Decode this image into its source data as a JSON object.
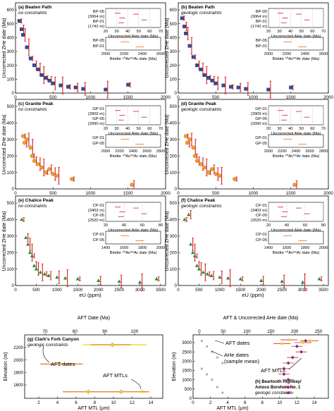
{
  "panels": {
    "a": {
      "letter": "(a) Beaten Path",
      "sub": "no constraints"
    },
    "b": {
      "letter": "(b) Beaten Path",
      "sub": "geologic constraints"
    },
    "c": {
      "letter": "(c) Granite Peak",
      "sub": "no constraints"
    },
    "d": {
      "letter": "(d) Granite Peak",
      "sub": "geologic constraints"
    },
    "e": {
      "letter": "(e) Chalice Peak",
      "sub": "no constraints"
    },
    "f": {
      "letter": "(f) Chalice Peak",
      "sub": "geologic constraints"
    },
    "g": {
      "letter": "(g) Clark's Fork Canyon",
      "sub": "geologic constraints"
    },
    "h": {
      "letter": "(h) Beartooth Highway/",
      "sub": "Amoco Borehole No. 1",
      "sub2": "geologic constraints"
    }
  },
  "axes": {
    "zhe_ylabel": "Uncorrected ZHe date (Ma)",
    "eu_xlabel": "eU (ppm)",
    "elev_ylabel": "Elevation (m)",
    "aft_date": "AFT Date (Ma)",
    "aft_ahe": "AFT & Uncorrected AHe date (Ma)",
    "aft_mtl": "AFT MTL (μm)",
    "ahe_inset": "Uncorrected AHe date (Ma)",
    "biotite": "Biotite ⁴⁰Ar/³⁹Ar date (Ma)",
    "y_ticks_ab": [
      "0",
      "100",
      "200",
      "300",
      "400",
      "500",
      "600"
    ],
    "y_ticks_cd": [
      "0",
      "100",
      "200",
      "300",
      "400",
      "500"
    ],
    "y_ticks_ef": [
      "0",
      "100",
      "200",
      "300",
      "400",
      "500"
    ],
    "x_ticks_2000": [
      "0",
      "500",
      "1000",
      "1500",
      "2000"
    ],
    "x_ticks_3500": [
      "0",
      "500",
      "1000",
      "1500",
      "2000",
      "2500",
      "3000",
      "3500"
    ],
    "inset_ab_top": [
      "20",
      "30",
      "40",
      "50",
      "60",
      "70"
    ],
    "inset_ab_bot": [
      "2000",
      "2200",
      "2400",
      "2600"
    ],
    "inset_cd_top": [
      "20",
      "30",
      "40",
      "50",
      "60",
      "70"
    ],
    "inset_cd_bot": [
      "2000",
      "2200",
      "2400",
      "2600",
      "2800"
    ],
    "inset_ef_top": [
      "20",
      "40",
      "60",
      "80"
    ],
    "inset_ef_bot": [
      "1400",
      "1600",
      "1800",
      "2000"
    ],
    "g_top": [
      "70",
      "80",
      "90",
      "100"
    ],
    "g_bot": [
      "2",
      "4",
      "6",
      "8",
      "10",
      "12",
      "14"
    ],
    "g_y": [
      "1600",
      "1800",
      "2000",
      "2200"
    ],
    "h_top": [
      "0",
      "50",
      "100",
      "150",
      "200",
      "250"
    ],
    "h_bot": [
      "0",
      "2",
      "4",
      "6",
      "8",
      "10",
      "12",
      "14"
    ],
    "h_y": [
      "0",
      "500",
      "1000",
      "1500",
      "2000",
      "2500",
      "3000"
    ]
  },
  "insets": {
    "bp": {
      "s1": "BP-05",
      "s1e": "(3064 m)",
      "s2": "BP-01",
      "s2e": "(1742 m)"
    },
    "gp": {
      "s1": "GP-01",
      "s1e": "(3909 m)",
      "s2": "GP-05",
      "s2e": "(2090 m)"
    },
    "cp": {
      "s1": "CP-01",
      "s1e": "(3403 m)",
      "s2": "CP-05",
      "s2e": "(2520 m)"
    }
  },
  "annotations": {
    "aft_dates": "AFT dates",
    "aft_mtls": "AFT MTLs",
    "ahe_dates": "AHe dates",
    "ahe_mean": "(sample mean)"
  },
  "colors": {
    "model": "#d62020",
    "bp": "#2a4fa0",
    "gp": "#f0a020",
    "cp": "#2a8a3a",
    "orange": "#f07010",
    "yellowline": "#f0e060"
  },
  "chart_data": [
    {
      "type": "scatter",
      "xlabel": "eU (ppm)",
      "ylabel": "Uncorrected ZHe date (Ma)",
      "xlim": [
        0,
        2000
      ],
      "ylim": [
        0,
        600
      ],
      "series": [
        {
          "values": [
            [
              50,
              520
            ],
            [
              80,
              460
            ],
            [
              100,
              420
            ],
            [
              150,
              330
            ],
            [
              200,
              250
            ],
            [
              250,
              200
            ],
            [
              300,
              170
            ],
            [
              350,
              130
            ],
            [
              400,
              110
            ],
            [
              450,
              90
            ],
            [
              500,
              70
            ],
            [
              600,
              55
            ],
            [
              700,
              45
            ],
            [
              800,
              40
            ],
            [
              900,
              30
            ],
            [
              1200,
              25
            ],
            [
              1500,
              60
            ]
          ]
        }
      ]
    },
    {
      "type": "scatter",
      "xlabel": "eU (ppm)",
      "ylabel": "Uncorrected ZHe date (Ma)",
      "xlim": [
        0,
        2000
      ],
      "ylim": [
        0,
        600
      ],
      "series": [
        {
          "values": [
            [
              50,
              540
            ],
            [
              80,
              480
            ],
            [
              100,
              430
            ],
            [
              150,
              340
            ],
            [
              200,
              260
            ],
            [
              250,
              200
            ],
            [
              300,
              170
            ],
            [
              350,
              130
            ],
            [
              400,
              110
            ],
            [
              450,
              90
            ],
            [
              500,
              70
            ],
            [
              600,
              55
            ],
            [
              700,
              45
            ],
            [
              800,
              40
            ],
            [
              900,
              30
            ],
            [
              1200,
              25
            ],
            [
              1500,
              40
            ]
          ]
        }
      ]
    },
    {
      "type": "scatter",
      "xlabel": "eU (ppm)",
      "ylabel": "Uncorrected ZHe date (Ma)",
      "xlim": [
        0,
        2000
      ],
      "ylim": [
        0,
        500
      ],
      "series": [
        {
          "values": [
            [
              100,
              320
            ],
            [
              120,
              280
            ],
            [
              150,
              300
            ],
            [
              200,
              250
            ],
            [
              220,
              200
            ],
            [
              250,
              170
            ],
            [
              300,
              150
            ],
            [
              350,
              130
            ],
            [
              400,
              100
            ],
            [
              450,
              120
            ],
            [
              500,
              90
            ],
            [
              550,
              80
            ],
            [
              750,
              60
            ],
            [
              1550,
              25
            ]
          ]
        }
      ]
    },
    {
      "type": "scatter",
      "xlabel": "eU (ppm)",
      "ylabel": "Uncorrected ZHe date (Ma)",
      "xlim": [
        0,
        2000
      ],
      "ylim": [
        0,
        500
      ],
      "series": [
        {
          "values": [
            [
              100,
              320
            ],
            [
              120,
              280
            ],
            [
              150,
              300
            ],
            [
              200,
              250
            ],
            [
              220,
              200
            ],
            [
              250,
              170
            ],
            [
              300,
              150
            ],
            [
              350,
              130
            ],
            [
              400,
              100
            ],
            [
              450,
              120
            ],
            [
              500,
              90
            ],
            [
              550,
              80
            ],
            [
              750,
              60
            ],
            [
              1550,
              25
            ]
          ]
        }
      ]
    },
    {
      "type": "scatter",
      "xlabel": "eU (ppm)",
      "ylabel": "Uncorrected ZHe date (Ma)",
      "xlim": [
        0,
        3500
      ],
      "ylim": [
        0,
        500
      ],
      "series": [
        {
          "values": [
            [
              150,
              400
            ],
            [
              250,
              290
            ],
            [
              300,
              250
            ],
            [
              350,
              200
            ],
            [
              400,
              180
            ],
            [
              450,
              120
            ],
            [
              500,
              100
            ],
            [
              600,
              80
            ],
            [
              700,
              70
            ],
            [
              800,
              60
            ],
            [
              1000,
              50
            ],
            [
              1200,
              45
            ],
            [
              1500,
              40
            ],
            [
              2000,
              30
            ],
            [
              2500,
              25
            ],
            [
              3000,
              20
            ],
            [
              3400,
              40
            ]
          ]
        }
      ]
    },
    {
      "type": "scatter",
      "xlabel": "eU (ppm)",
      "ylabel": "Uncorrected ZHe date (Ma)",
      "xlim": [
        0,
        3500
      ],
      "ylim": [
        0,
        500
      ],
      "series": [
        {
          "values": [
            [
              150,
              400
            ],
            [
              250,
              430
            ],
            [
              300,
              250
            ],
            [
              350,
              200
            ],
            [
              400,
              180
            ],
            [
              450,
              120
            ],
            [
              500,
              100
            ],
            [
              600,
              80
            ],
            [
              700,
              70
            ],
            [
              800,
              60
            ],
            [
              1000,
              50
            ],
            [
              1200,
              45
            ],
            [
              1500,
              40
            ],
            [
              2000,
              30
            ],
            [
              2500,
              25
            ],
            [
              3000,
              20
            ],
            [
              3400,
              40
            ]
          ]
        }
      ]
    },
    {
      "type": "scatter",
      "xlabel": "AFT MTL (μm)",
      "ylabel": "Elevation (m)",
      "xlim": [
        0,
        14
      ],
      "ylim": [
        1400,
        2300
      ],
      "series": [
        {
          "values": [
            [
              10.3,
              1490
            ],
            [
              6.2,
              1490
            ],
            [
              13,
              1490
            ]
          ]
        },
        {
          "values": [
            [
              2.6,
              1935
            ]
          ]
        },
        {
          "values": [
            [
              9.2,
              2245
            ]
          ]
        }
      ]
    },
    {
      "type": "scatter",
      "xlabel": "AFT MTL (μm)",
      "ylabel": "Elevation (m)",
      "xlim": [
        0,
        14
      ],
      "ylim": [
        0,
        3300
      ],
      "series": [
        {
          "values": [
            [
              13,
              3100
            ],
            [
              12,
              2800
            ],
            [
              12.5,
              2500
            ],
            [
              11.5,
              2200
            ],
            [
              11,
              1900
            ],
            [
              10.5,
              1600
            ],
            [
              10.5,
              1300
            ],
            [
              11,
              1000
            ],
            [
              11,
              600
            ],
            [
              11,
              300
            ]
          ]
        }
      ]
    }
  ]
}
